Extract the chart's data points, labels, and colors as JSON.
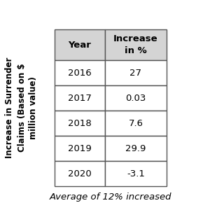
{
  "title_rotated_line1": "Increase in Surrender",
  "title_rotated_line2": "Claims (Based on $\nmillion value)",
  "col_headers": [
    "Year",
    "Increase\nin %"
  ],
  "rows": [
    [
      "2016",
      "27"
    ],
    [
      "2017",
      "0.03"
    ],
    [
      "2018",
      "7.6"
    ],
    [
      "2019",
      "29.9"
    ],
    [
      "2020",
      "-3.1"
    ]
  ],
  "footer": "Average of 12% increased",
  "header_bg": "#d4d4d4",
  "cell_bg": "#ffffff",
  "border_color": "#555555",
  "text_color": "#000000",
  "header_fontsize": 9.5,
  "cell_fontsize": 9.5,
  "footer_fontsize": 9.5,
  "rotated_label_fontsize": 8.5
}
